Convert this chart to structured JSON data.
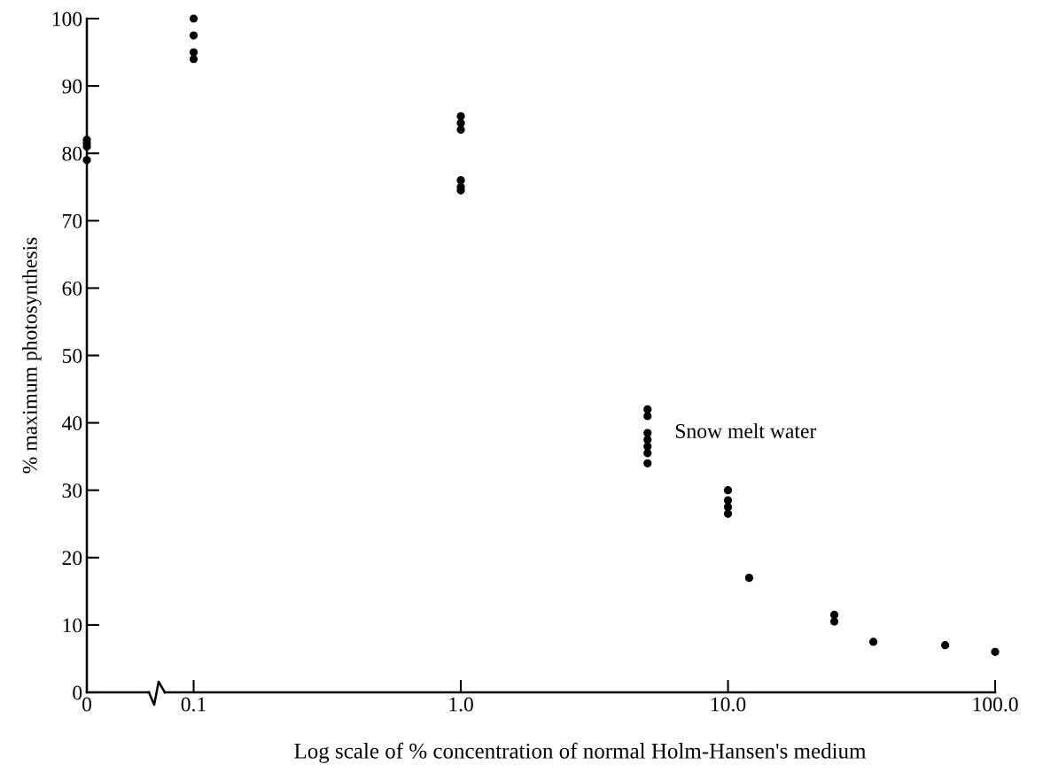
{
  "chart_data": [
    {
      "type": "scatter",
      "ylabel": "% maximum photosynthesis",
      "categories": [
        "0"
      ],
      "series": [
        {
          "color": "#000000",
          "x": [
            "0",
            "0",
            "0",
            "0"
          ],
          "values": [
            82,
            81.5,
            81,
            79
          ]
        }
      ],
      "marker": "circle",
      "ylim": [
        0,
        100
      ],
      "yticks": [
        0,
        10,
        20,
        30,
        40,
        50,
        60,
        70,
        80,
        90,
        100
      ]
    },
    {
      "type": "scatter",
      "xlabel": "Log scale of % concentration of normal Holm-Hansen's medium",
      "series": [
        {
          "color": "#000000",
          "x": [
            0.1,
            0.1,
            0.1,
            0.1,
            1,
            1,
            1,
            1,
            1,
            1,
            5,
            5,
            5,
            5,
            5,
            5,
            5,
            10,
            10,
            10,
            10,
            12,
            25,
            25,
            35,
            65,
            100
          ],
          "values": [
            100,
            97.5,
            95,
            94,
            85.5,
            84.5,
            83.5,
            76,
            75,
            74.5,
            42,
            41,
            38.5,
            37.5,
            36.5,
            35.5,
            34,
            30,
            28.5,
            27.5,
            26.5,
            17,
            11.5,
            10.5,
            7.5,
            7,
            6
          ]
        }
      ],
      "marker": "circle",
      "log": "x",
      "xlim": [
        0.078,
        100
      ],
      "xticks": [
        0.1,
        {
          "value": 1,
          "label": "1.0"
        },
        {
          "value": 10,
          "label": "10.0"
        },
        {
          "value": 100,
          "label": "100.0"
        }
      ],
      "ylim": [
        0,
        100
      ],
      "tick_labels": "x",
      "annotations": [
        {
          "text": "Snow melt water",
          "x": 5,
          "y": 38.5
        }
      ]
    }
  ]
}
